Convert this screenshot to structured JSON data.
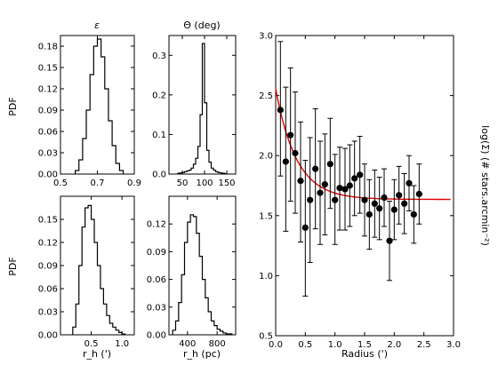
{
  "chart_data": [
    {
      "type": "histogram",
      "title": "ε",
      "xlabel": "",
      "ylabel": "PDF",
      "xlim": [
        0.5,
        0.9
      ],
      "ylim": [
        0,
        0.195
      ],
      "xticks": [
        0.5,
        0.7,
        0.9
      ],
      "xtick_labels": [
        "0.5",
        "0.7",
        "0.9"
      ],
      "yticks": [
        0.0,
        0.03,
        0.06,
        0.09,
        0.12,
        0.15,
        0.18
      ],
      "ytick_labels": [
        "0.00",
        "0.03",
        "0.06",
        "0.09",
        "0.12",
        "0.15",
        "0.18"
      ],
      "bins": [
        0.58,
        0.6,
        0.62,
        0.64,
        0.66,
        0.68,
        0.7,
        0.72,
        0.74,
        0.76,
        0.78,
        0.8,
        0.82
      ],
      "values": [
        0.005,
        0.02,
        0.05,
        0.09,
        0.14,
        0.18,
        0.19,
        0.165,
        0.12,
        0.075,
        0.04,
        0.015,
        0.005
      ]
    },
    {
      "type": "histogram",
      "title": "Θ (deg)",
      "xlabel": "",
      "ylabel": "",
      "xlim": [
        20,
        170
      ],
      "ylim": [
        0,
        0.35
      ],
      "xticks": [
        50,
        100,
        150
      ],
      "xtick_labels": [
        "50",
        "100",
        "150"
      ],
      "yticks": [
        0.0,
        0.1,
        0.2,
        0.3
      ],
      "ytick_labels": [
        "0.0",
        "0.1",
        "0.2",
        "0.3"
      ],
      "bins": [
        40,
        45,
        50,
        55,
        60,
        65,
        70,
        75,
        80,
        85,
        90,
        95,
        100,
        105,
        110,
        115,
        120,
        125,
        130,
        135,
        140,
        145
      ],
      "values": [
        0.002,
        0.003,
        0.004,
        0.006,
        0.008,
        0.01,
        0.015,
        0.025,
        0.04,
        0.07,
        0.15,
        0.33,
        0.18,
        0.06,
        0.03,
        0.015,
        0.01,
        0.006,
        0.004,
        0.003,
        0.002,
        0.001
      ]
    },
    {
      "type": "histogram",
      "title": "",
      "xlabel": "r_h (')",
      "ylabel": "PDF",
      "xlim": [
        0,
        1.2
      ],
      "ylim": [
        0,
        0.18
      ],
      "xticks": [
        0.5,
        1.0
      ],
      "xtick_labels": [
        "0.5",
        "1.0"
      ],
      "yticks": [
        0.0,
        0.03,
        0.06,
        0.09,
        0.12,
        0.15
      ],
      "ytick_labels": [
        "0.00",
        "0.03",
        "0.06",
        "0.09",
        "0.12",
        "0.15"
      ],
      "bins": [
        0.2,
        0.25,
        0.3,
        0.35,
        0.4,
        0.45,
        0.5,
        0.55,
        0.6,
        0.65,
        0.7,
        0.75,
        0.8,
        0.85,
        0.9,
        0.95,
        1.0
      ],
      "values": [
        0.01,
        0.04,
        0.09,
        0.14,
        0.165,
        0.168,
        0.15,
        0.12,
        0.09,
        0.06,
        0.04,
        0.025,
        0.015,
        0.01,
        0.006,
        0.003,
        0.001
      ]
    },
    {
      "type": "histogram",
      "title": "",
      "xlabel": "r_h (pc)",
      "ylabel": "",
      "xlim": [
        150,
        1050
      ],
      "ylim": [
        0,
        0.15
      ],
      "xticks": [
        400,
        800
      ],
      "xtick_labels": [
        "400",
        "800"
      ],
      "yticks": [
        0.0,
        0.03,
        0.06,
        0.09,
        0.12
      ],
      "ytick_labels": [
        "0.00",
        "0.03",
        "0.06",
        "0.09",
        "0.12"
      ],
      "bins": [
        200,
        240,
        280,
        320,
        360,
        400,
        440,
        480,
        520,
        560,
        600,
        640,
        680,
        720,
        760,
        800,
        840,
        880,
        920,
        960
      ],
      "values": [
        0.005,
        0.015,
        0.035,
        0.065,
        0.1,
        0.122,
        0.13,
        0.128,
        0.11,
        0.085,
        0.06,
        0.04,
        0.025,
        0.015,
        0.01,
        0.006,
        0.004,
        0.002,
        0.001,
        0.001
      ]
    },
    {
      "type": "scatter",
      "title": "",
      "xlabel": "Radius (')",
      "ylabel": "log(Σ) (# stars.arcmin⁻²)",
      "xlim": [
        0.0,
        3.0
      ],
      "ylim": [
        0.5,
        3.0
      ],
      "xticks": [
        0.0,
        0.5,
        1.0,
        1.5,
        2.0,
        2.5,
        3.0
      ],
      "xtick_labels": [
        "0.0",
        "0.5",
        "1.0",
        "1.5",
        "2.0",
        "2.5",
        "3.0"
      ],
      "yticks": [
        0.5,
        1.0,
        1.5,
        2.0,
        2.5,
        3.0
      ],
      "ytick_labels": [
        "0.5",
        "1.0",
        "1.5",
        "2.0",
        "2.5",
        "3.0"
      ],
      "points": [
        {
          "x": 0.08,
          "y": 2.38,
          "lo": 1.83,
          "hi": 2.95
        },
        {
          "x": 0.17,
          "y": 1.95,
          "lo": 1.37,
          "hi": 2.57
        },
        {
          "x": 0.25,
          "y": 2.17,
          "lo": 1.62,
          "hi": 2.73
        },
        {
          "x": 0.33,
          "y": 2.02,
          "lo": 1.52,
          "hi": 2.53
        },
        {
          "x": 0.42,
          "y": 1.79,
          "lo": 1.28,
          "hi": 2.28
        },
        {
          "x": 0.5,
          "y": 1.4,
          "lo": 0.83,
          "hi": 1.96
        },
        {
          "x": 0.58,
          "y": 1.63,
          "lo": 1.11,
          "hi": 2.15
        },
        {
          "x": 0.67,
          "y": 1.89,
          "lo": 1.39,
          "hi": 2.39
        },
        {
          "x": 0.75,
          "y": 1.69,
          "lo": 1.26,
          "hi": 2.12
        },
        {
          "x": 0.83,
          "y": 1.76,
          "lo": 1.34,
          "hi": 2.18
        },
        {
          "x": 0.92,
          "y": 1.93,
          "lo": 1.56,
          "hi": 2.31
        },
        {
          "x": 1.0,
          "y": 1.63,
          "lo": 1.26,
          "hi": 2.01
        },
        {
          "x": 1.08,
          "y": 1.73,
          "lo": 1.38,
          "hi": 2.07
        },
        {
          "x": 1.17,
          "y": 1.72,
          "lo": 1.38,
          "hi": 2.06
        },
        {
          "x": 1.25,
          "y": 1.75,
          "lo": 1.41,
          "hi": 2.09
        },
        {
          "x": 1.33,
          "y": 1.81,
          "lo": 1.5,
          "hi": 2.12
        },
        {
          "x": 1.42,
          "y": 1.84,
          "lo": 1.52,
          "hi": 2.16
        },
        {
          "x": 1.5,
          "y": 1.63,
          "lo": 1.33,
          "hi": 1.93
        },
        {
          "x": 1.58,
          "y": 1.51,
          "lo": 1.22,
          "hi": 1.8
        },
        {
          "x": 1.67,
          "y": 1.6,
          "lo": 1.32,
          "hi": 1.88
        },
        {
          "x": 1.75,
          "y": 1.56,
          "lo": 1.3,
          "hi": 1.82
        },
        {
          "x": 1.83,
          "y": 1.65,
          "lo": 1.41,
          "hi": 1.89
        },
        {
          "x": 1.92,
          "y": 1.29,
          "lo": 0.96,
          "hi": 1.62
        },
        {
          "x": 2.0,
          "y": 1.55,
          "lo": 1.3,
          "hi": 1.8
        },
        {
          "x": 2.08,
          "y": 1.67,
          "lo": 1.43,
          "hi": 1.91
        },
        {
          "x": 2.17,
          "y": 1.6,
          "lo": 1.35,
          "hi": 1.85
        },
        {
          "x": 2.25,
          "y": 1.77,
          "lo": 1.54,
          "hi": 2.0
        },
        {
          "x": 2.33,
          "y": 1.51,
          "lo": 1.27,
          "hi": 1.75
        },
        {
          "x": 2.42,
          "y": 1.68,
          "lo": 1.43,
          "hi": 1.93
        }
      ],
      "fit_curve": {
        "color": "#e00000",
        "bg": 1.635,
        "amp": 0.92,
        "scale": 0.35
      },
      "point_color": "#000000"
    }
  ]
}
